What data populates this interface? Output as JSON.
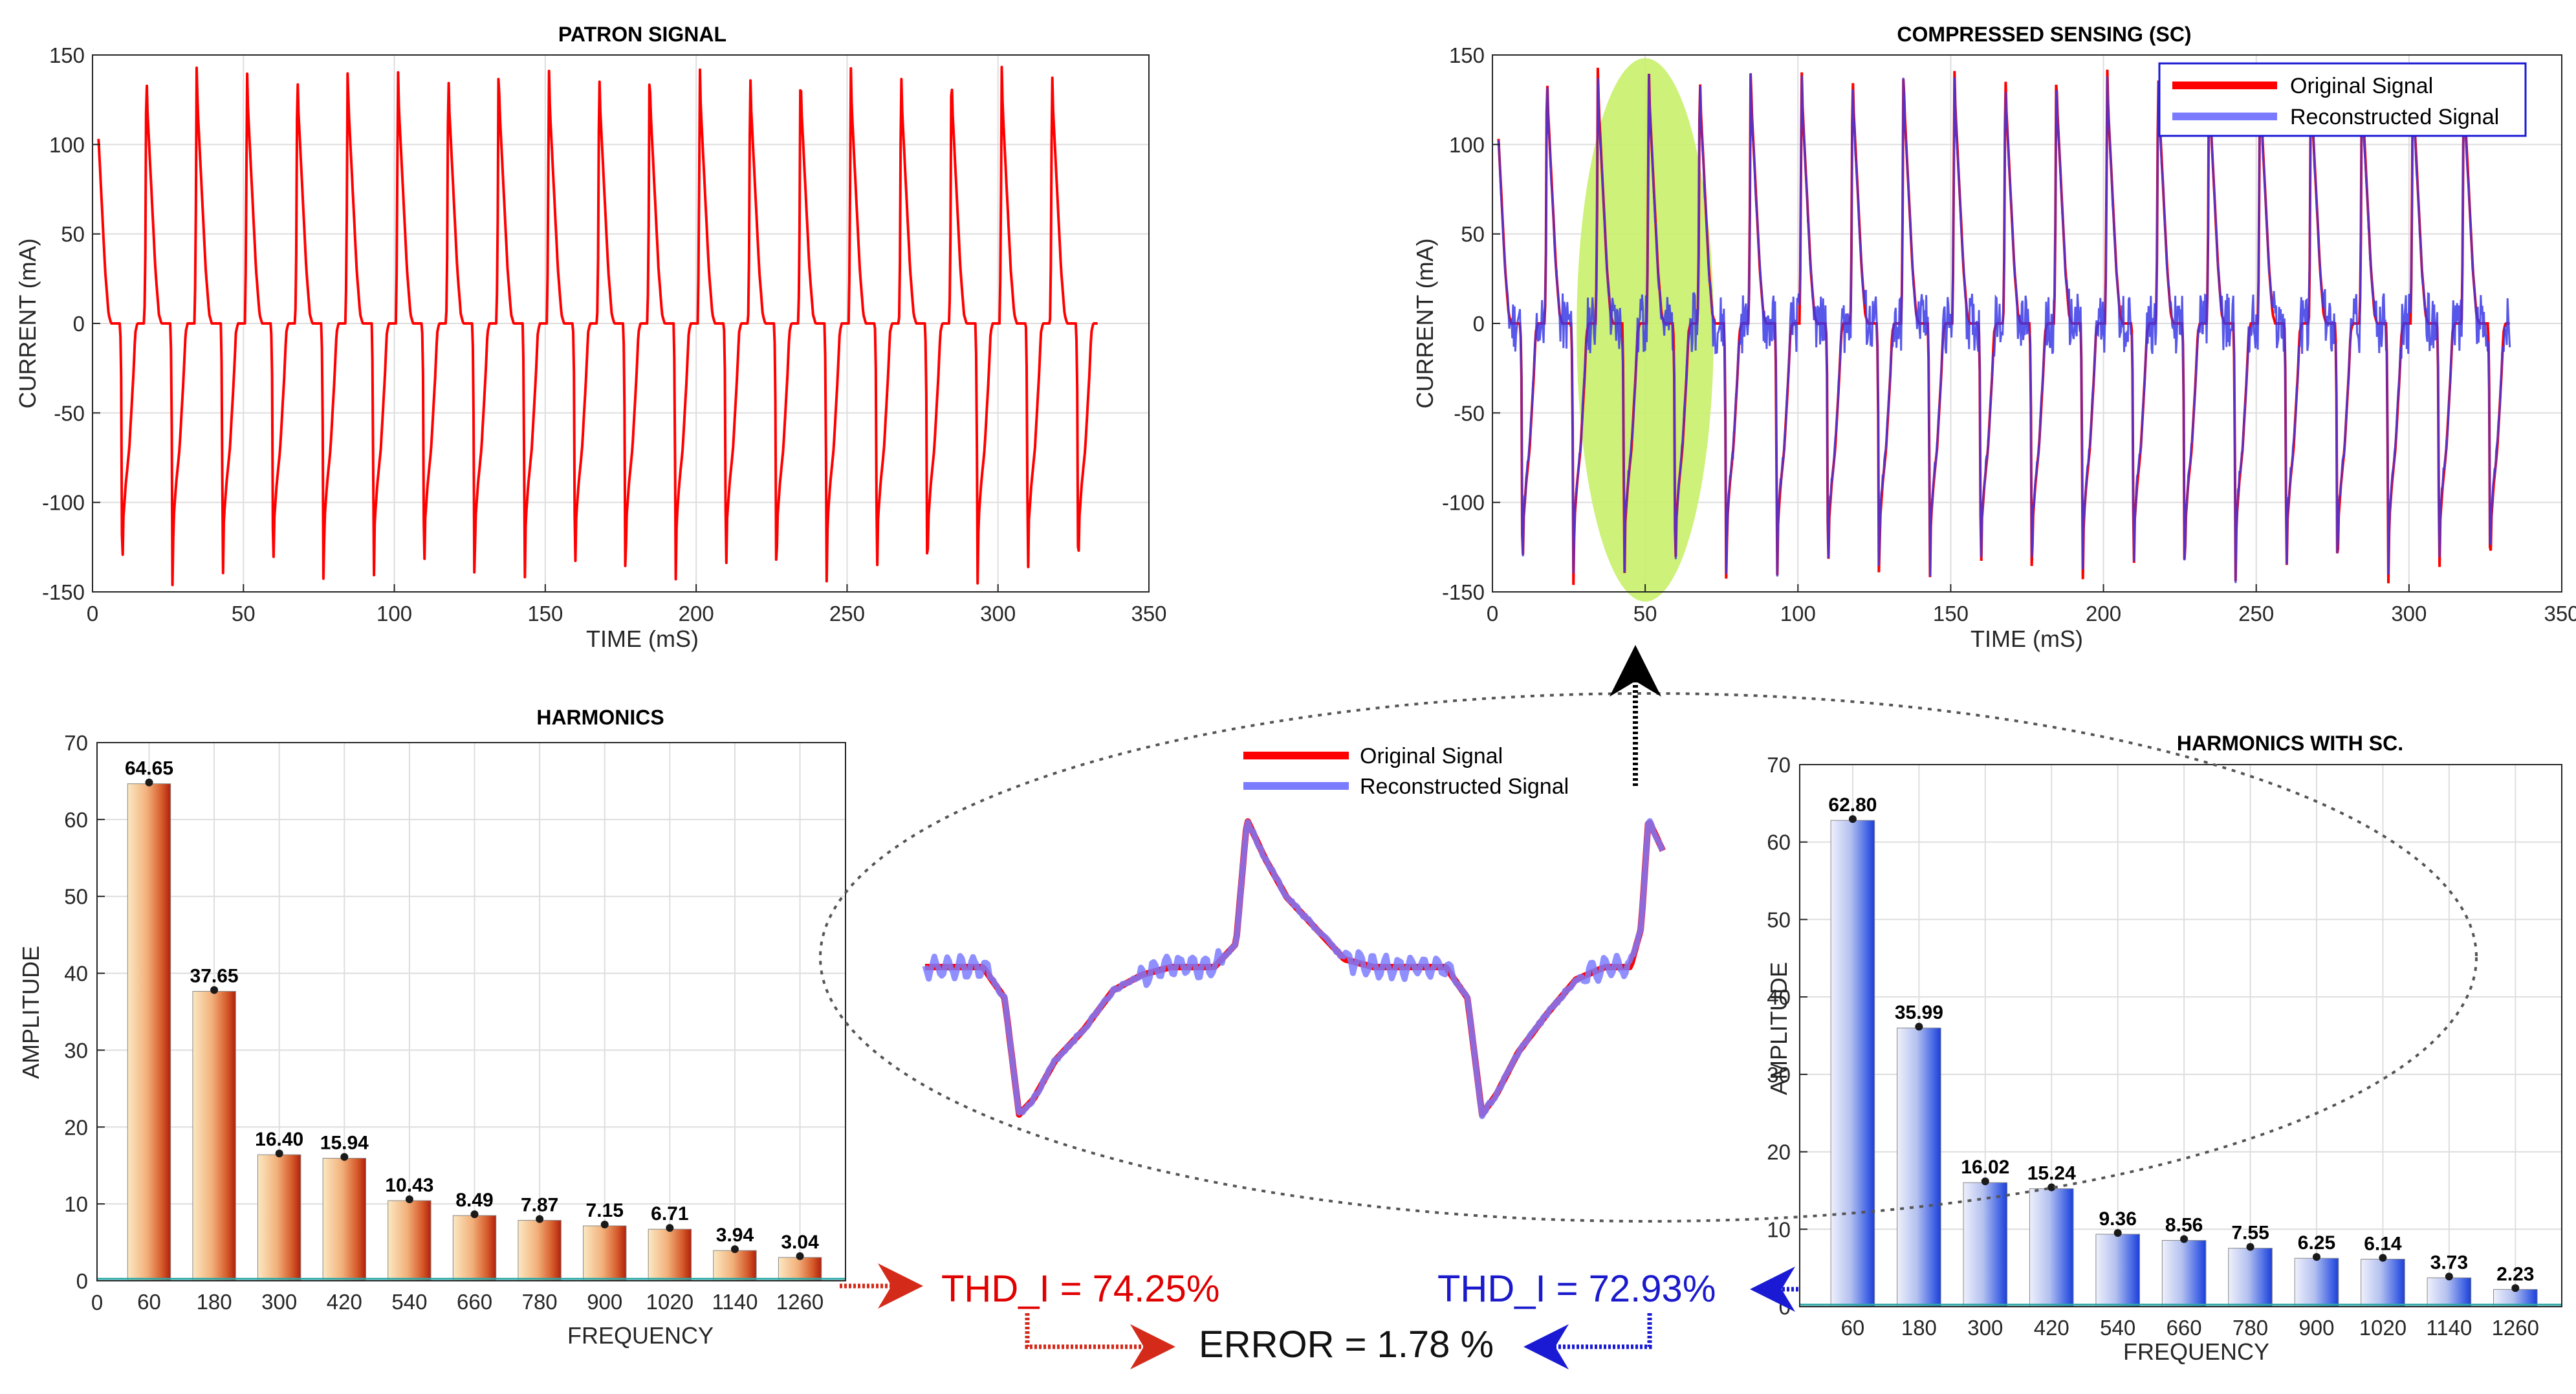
{
  "colors": {
    "original": "#ff0000",
    "reconstructed": "#7b7bff",
    "overlap": "#7a1fa2",
    "highlight": "#c8f06a",
    "thd_orig": "#e00000",
    "thd_sc": "#1a1acc",
    "arrow_red": "#d42a1a",
    "arrow_blue": "#1a1ad4"
  },
  "chart_data": [
    {
      "id": "patron",
      "type": "line",
      "title": "PATRON SIGNAL",
      "xlabel": "TIME (mS)",
      "ylabel": "CURRENT (mA)",
      "xlim": [
        0,
        350
      ],
      "ylim": [
        -150,
        150
      ],
      "xticks": [
        0,
        50,
        100,
        150,
        200,
        250,
        300,
        350
      ],
      "yticks": [
        150,
        100,
        50,
        0,
        -50,
        -100,
        -150
      ],
      "grid": true,
      "period_ms": 16.67,
      "cycles": 20,
      "signal_end_ms": 333,
      "series": [
        {
          "name": "Original Signal",
          "peak": 145,
          "trough": -148
        }
      ]
    },
    {
      "id": "sc",
      "type": "line",
      "title": "COMPRESSED SENSING (SC)",
      "xlabel": "TIME (mS)",
      "ylabel": "CURRENT (mA)",
      "xlim": [
        0,
        350
      ],
      "ylim": [
        -150,
        150
      ],
      "xticks": [
        0,
        50,
        100,
        150,
        200,
        250,
        300,
        350
      ],
      "yticks": [
        150,
        100,
        50,
        0,
        -50,
        -100,
        -150
      ],
      "grid": true,
      "legend": "top-right",
      "highlight_center_ms": 50,
      "series": [
        {
          "name": "Original Signal"
        },
        {
          "name": "Reconstructed Signal"
        }
      ]
    },
    {
      "id": "harm",
      "type": "bar",
      "title": "HARMONICS",
      "xlabel": "FREQUENCY",
      "ylabel": "AMPLITUDE",
      "ylim": [
        0,
        70
      ],
      "yticks": [
        70,
        60,
        50,
        40,
        30,
        20,
        10,
        0
      ],
      "categories": [
        "60",
        "180",
        "300",
        "420",
        "540",
        "660",
        "780",
        "900",
        "1020",
        "1140",
        "1260"
      ],
      "values": [
        64.65,
        37.65,
        16.4,
        15.94,
        10.43,
        8.49,
        7.87,
        7.15,
        6.71,
        3.94,
        3.04
      ],
      "labels": [
        "64.65",
        "37.65",
        "16.40",
        "15.94",
        "10.43",
        "8.49",
        "7.87",
        "7.15",
        "6.71",
        "3.94",
        "3.04"
      ],
      "x_origin_label": "0"
    },
    {
      "id": "harmsc",
      "type": "bar",
      "title": "HARMONICS WITH SC.",
      "xlabel": "FREQUENCY",
      "ylabel": "AMPLITUDE",
      "ylim": [
        0,
        70
      ],
      "yticks": [
        70,
        60,
        50,
        40,
        30,
        20,
        10,
        0
      ],
      "categories": [
        "60",
        "180",
        "300",
        "420",
        "540",
        "660",
        "780",
        "900",
        "1020",
        "1140",
        "1260"
      ],
      "values": [
        62.8,
        35.99,
        16.02,
        15.24,
        9.36,
        8.56,
        7.55,
        6.25,
        6.14,
        3.73,
        2.23
      ],
      "labels": [
        "62.80",
        "35.99",
        "16.02",
        "15.24",
        "9.36",
        "8.56",
        "7.55",
        "6.25",
        "6.14",
        "3.73",
        "2.23"
      ]
    }
  ],
  "zoom": {
    "legend_original": "Original Signal",
    "legend_reconstructed": "Reconstructed Signal"
  },
  "results": {
    "thd_original": "THD_I = 74.25%",
    "thd_sc": "THD_I = 72.93%",
    "error": "ERROR = 1.78 %"
  }
}
